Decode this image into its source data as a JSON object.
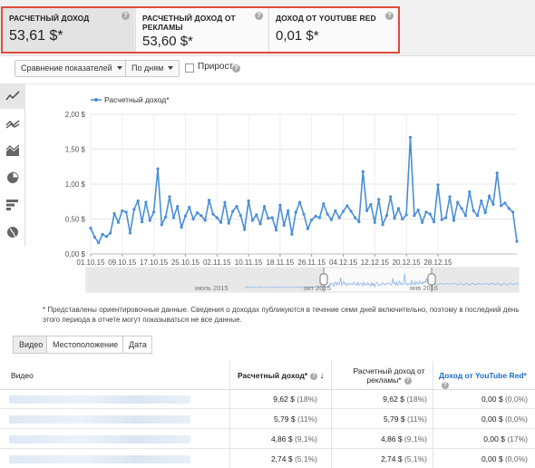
{
  "cards": [
    {
      "label": "Расчетный доход",
      "value": "53,61 $*"
    },
    {
      "label": "Расчетный доход от рекламы",
      "value": "53,60 $*"
    },
    {
      "label": "Доход от YouTube Red",
      "value": "0,01 $*"
    }
  ],
  "help_glyph": "?",
  "toolbar": {
    "compare_label": "Сравнение показателей",
    "period_label": "По дням",
    "growth_label": "Прирост"
  },
  "side_icons": [
    "line-chart-icon",
    "multi-line-icon",
    "area-chart-icon",
    "pie-chart-icon",
    "bar-chart-icon",
    "globe-map-icon"
  ],
  "chart_data": {
    "type": "line",
    "legend": "Расчетный доход*",
    "legend_placement": "top-left",
    "y_ticks": [
      "0,00 $",
      "0,50 $",
      "1,00 $",
      "1,50 $",
      "2,00 $"
    ],
    "ylim": [
      0,
      2.0
    ],
    "x_ticks": [
      "01.10.15",
      "09.10.15",
      "17.10.15",
      "25.10.15",
      "02.11.15",
      "10.11.15",
      "18.11.15",
      "26.11.15",
      "04.12.15",
      "12.12.15",
      "20.12.15",
      "28.12.15"
    ],
    "x_start": "2015-10-01",
    "x_end": "2015-12-31",
    "grid": true,
    "values": [
      0.37,
      0.24,
      0.16,
      0.28,
      0.25,
      0.3,
      0.58,
      0.45,
      0.62,
      0.6,
      0.3,
      0.64,
      0.76,
      0.46,
      0.74,
      0.48,
      0.6,
      1.22,
      0.42,
      0.53,
      0.82,
      0.52,
      0.68,
      0.38,
      0.54,
      0.67,
      0.5,
      0.59,
      0.55,
      0.48,
      0.77,
      0.57,
      0.52,
      0.45,
      0.74,
      0.44,
      0.61,
      0.68,
      0.55,
      0.35,
      0.76,
      0.48,
      0.56,
      0.43,
      0.68,
      0.51,
      0.52,
      0.34,
      0.7,
      0.41,
      0.62,
      0.28,
      0.6,
      0.74,
      0.57,
      0.36,
      0.49,
      0.54,
      0.52,
      0.72,
      0.57,
      0.49,
      0.62,
      0.52,
      0.61,
      0.69,
      0.61,
      0.52,
      0.46,
      1.18,
      0.62,
      0.71,
      0.45,
      0.78,
      0.42,
      0.55,
      0.82,
      0.51,
      0.65,
      0.5,
      0.56,
      1.67,
      0.55,
      0.63,
      0.45,
      0.6,
      0.57,
      0.46,
      0.99,
      0.49,
      0.52,
      0.82,
      0.48,
      0.74,
      0.65,
      0.55,
      0.89,
      0.62,
      0.55,
      0.76,
      0.59,
      0.83,
      0.71,
      1.16,
      0.69,
      0.73,
      0.65,
      0.6,
      0.18
    ]
  },
  "timeline": {
    "labels": [
      "июль 2015",
      "окт 2015",
      "янв 2016"
    ]
  },
  "note": "* Представлены ориентировочные данные. Сведения о доходах публикуются в течение семи дней включительно, поэтому в последний день этого периода в отчете могут показываться не все данные.",
  "tabs": [
    "Видео",
    "Местоположение",
    "Дата"
  ],
  "table": {
    "headers": {
      "video": "Видео",
      "estimated": "Расчетный доход*",
      "sort_arrow": "↓",
      "ad_line1": "Расчетный доход от",
      "ad_line2": "рекламы*",
      "red": "Доход от YouTube Red*"
    },
    "rows": [
      {
        "est": "9,62 $",
        "est_pct": "(18%)",
        "ad": "9,62 $",
        "ad_pct": "(18%)",
        "red": "0,00 $",
        "red_pct": "(0,0%)"
      },
      {
        "est": "5,79 $",
        "est_pct": "(11%)",
        "ad": "5,79 $",
        "ad_pct": "(11%)",
        "red": "0,00 $",
        "red_pct": "(0,0%)"
      },
      {
        "est": "4,86 $",
        "est_pct": "(9,1%)",
        "ad": "4,86 $",
        "ad_pct": "(9,1%)",
        "red": "0,00 $",
        "red_pct": "(17%)"
      },
      {
        "est": "2,74 $",
        "est_pct": "(5,1%)",
        "ad": "2,74 $",
        "ad_pct": "(5,1%)",
        "red": "0,00 $",
        "red_pct": "(0,0%)"
      }
    ]
  },
  "colors": {
    "series": "#4a8fd8",
    "highlight_border": "#e24a3b",
    "link_blue": "#1a6bc4"
  }
}
